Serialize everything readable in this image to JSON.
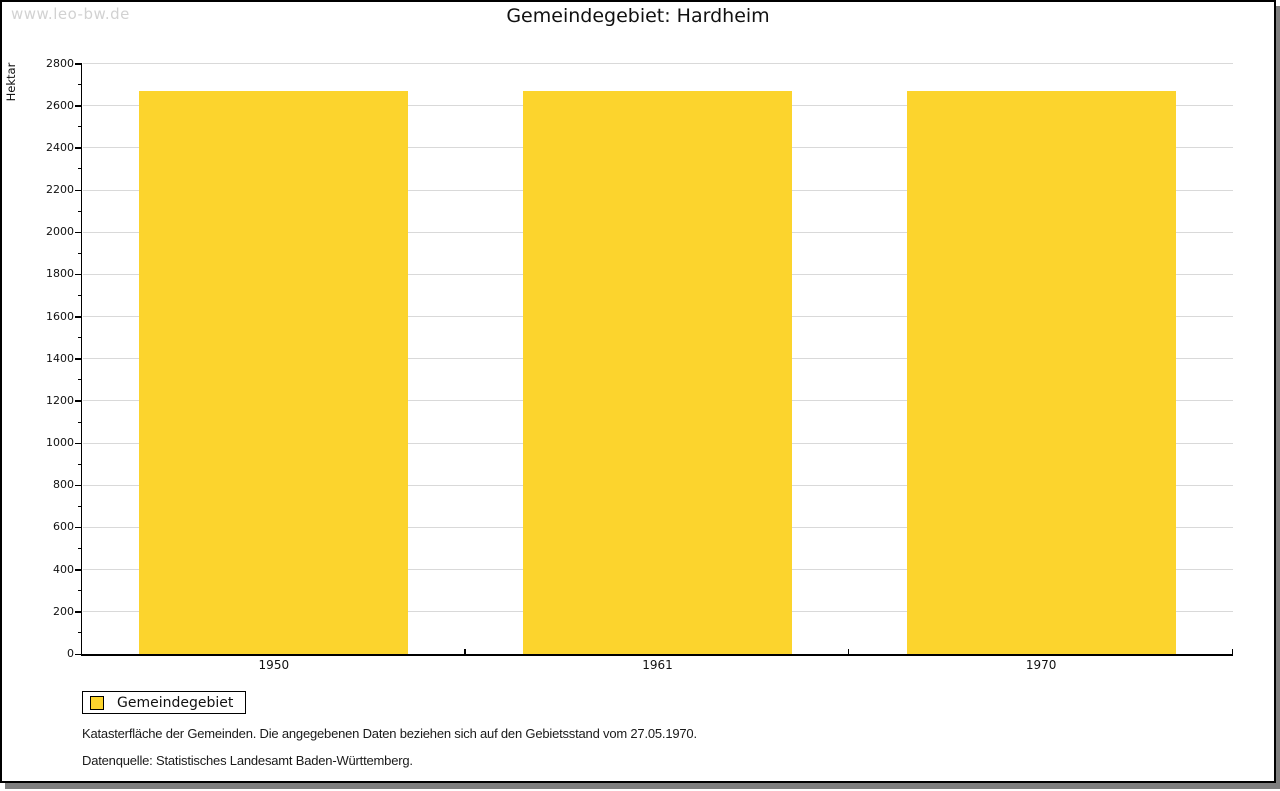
{
  "watermark": "www.leo-bw.de",
  "title": "Gemeindegebiet: Hardheim",
  "chart_data": {
    "type": "bar",
    "title": "Gemeindegebiet: Hardheim",
    "categories": [
      "1950",
      "1961",
      "1970"
    ],
    "series": [
      {
        "name": "Gemeindegebiet",
        "values": [
          2670,
          2670,
          2670
        ],
        "color": "#FCD42D"
      }
    ],
    "xlabel": "",
    "ylabel": "Hektar",
    "ylim": [
      0,
      2800
    ],
    "ytick_step": 200,
    "minor_tick_step": 100,
    "grid": true,
    "gridline_color": "#d9d9d9",
    "legend_position": "bottom-left"
  },
  "legend": {
    "label": "Gemeindegebiet",
    "swatch_color": "#FCD42D"
  },
  "footnotes": [
    "Katasterfläche der Gemeinden. Die angegebenen Daten beziehen sich auf den Gebietsstand vom 27.05.1970.",
    "Datenquelle: Statistisches Landesamt Baden-Württemberg."
  ],
  "colors": {
    "bar": "#FCD42D",
    "axis": "#000000",
    "gridline": "#d9d9d9",
    "watermark": "#d2d2d2",
    "page_shadow": "#7e7e7e"
  }
}
